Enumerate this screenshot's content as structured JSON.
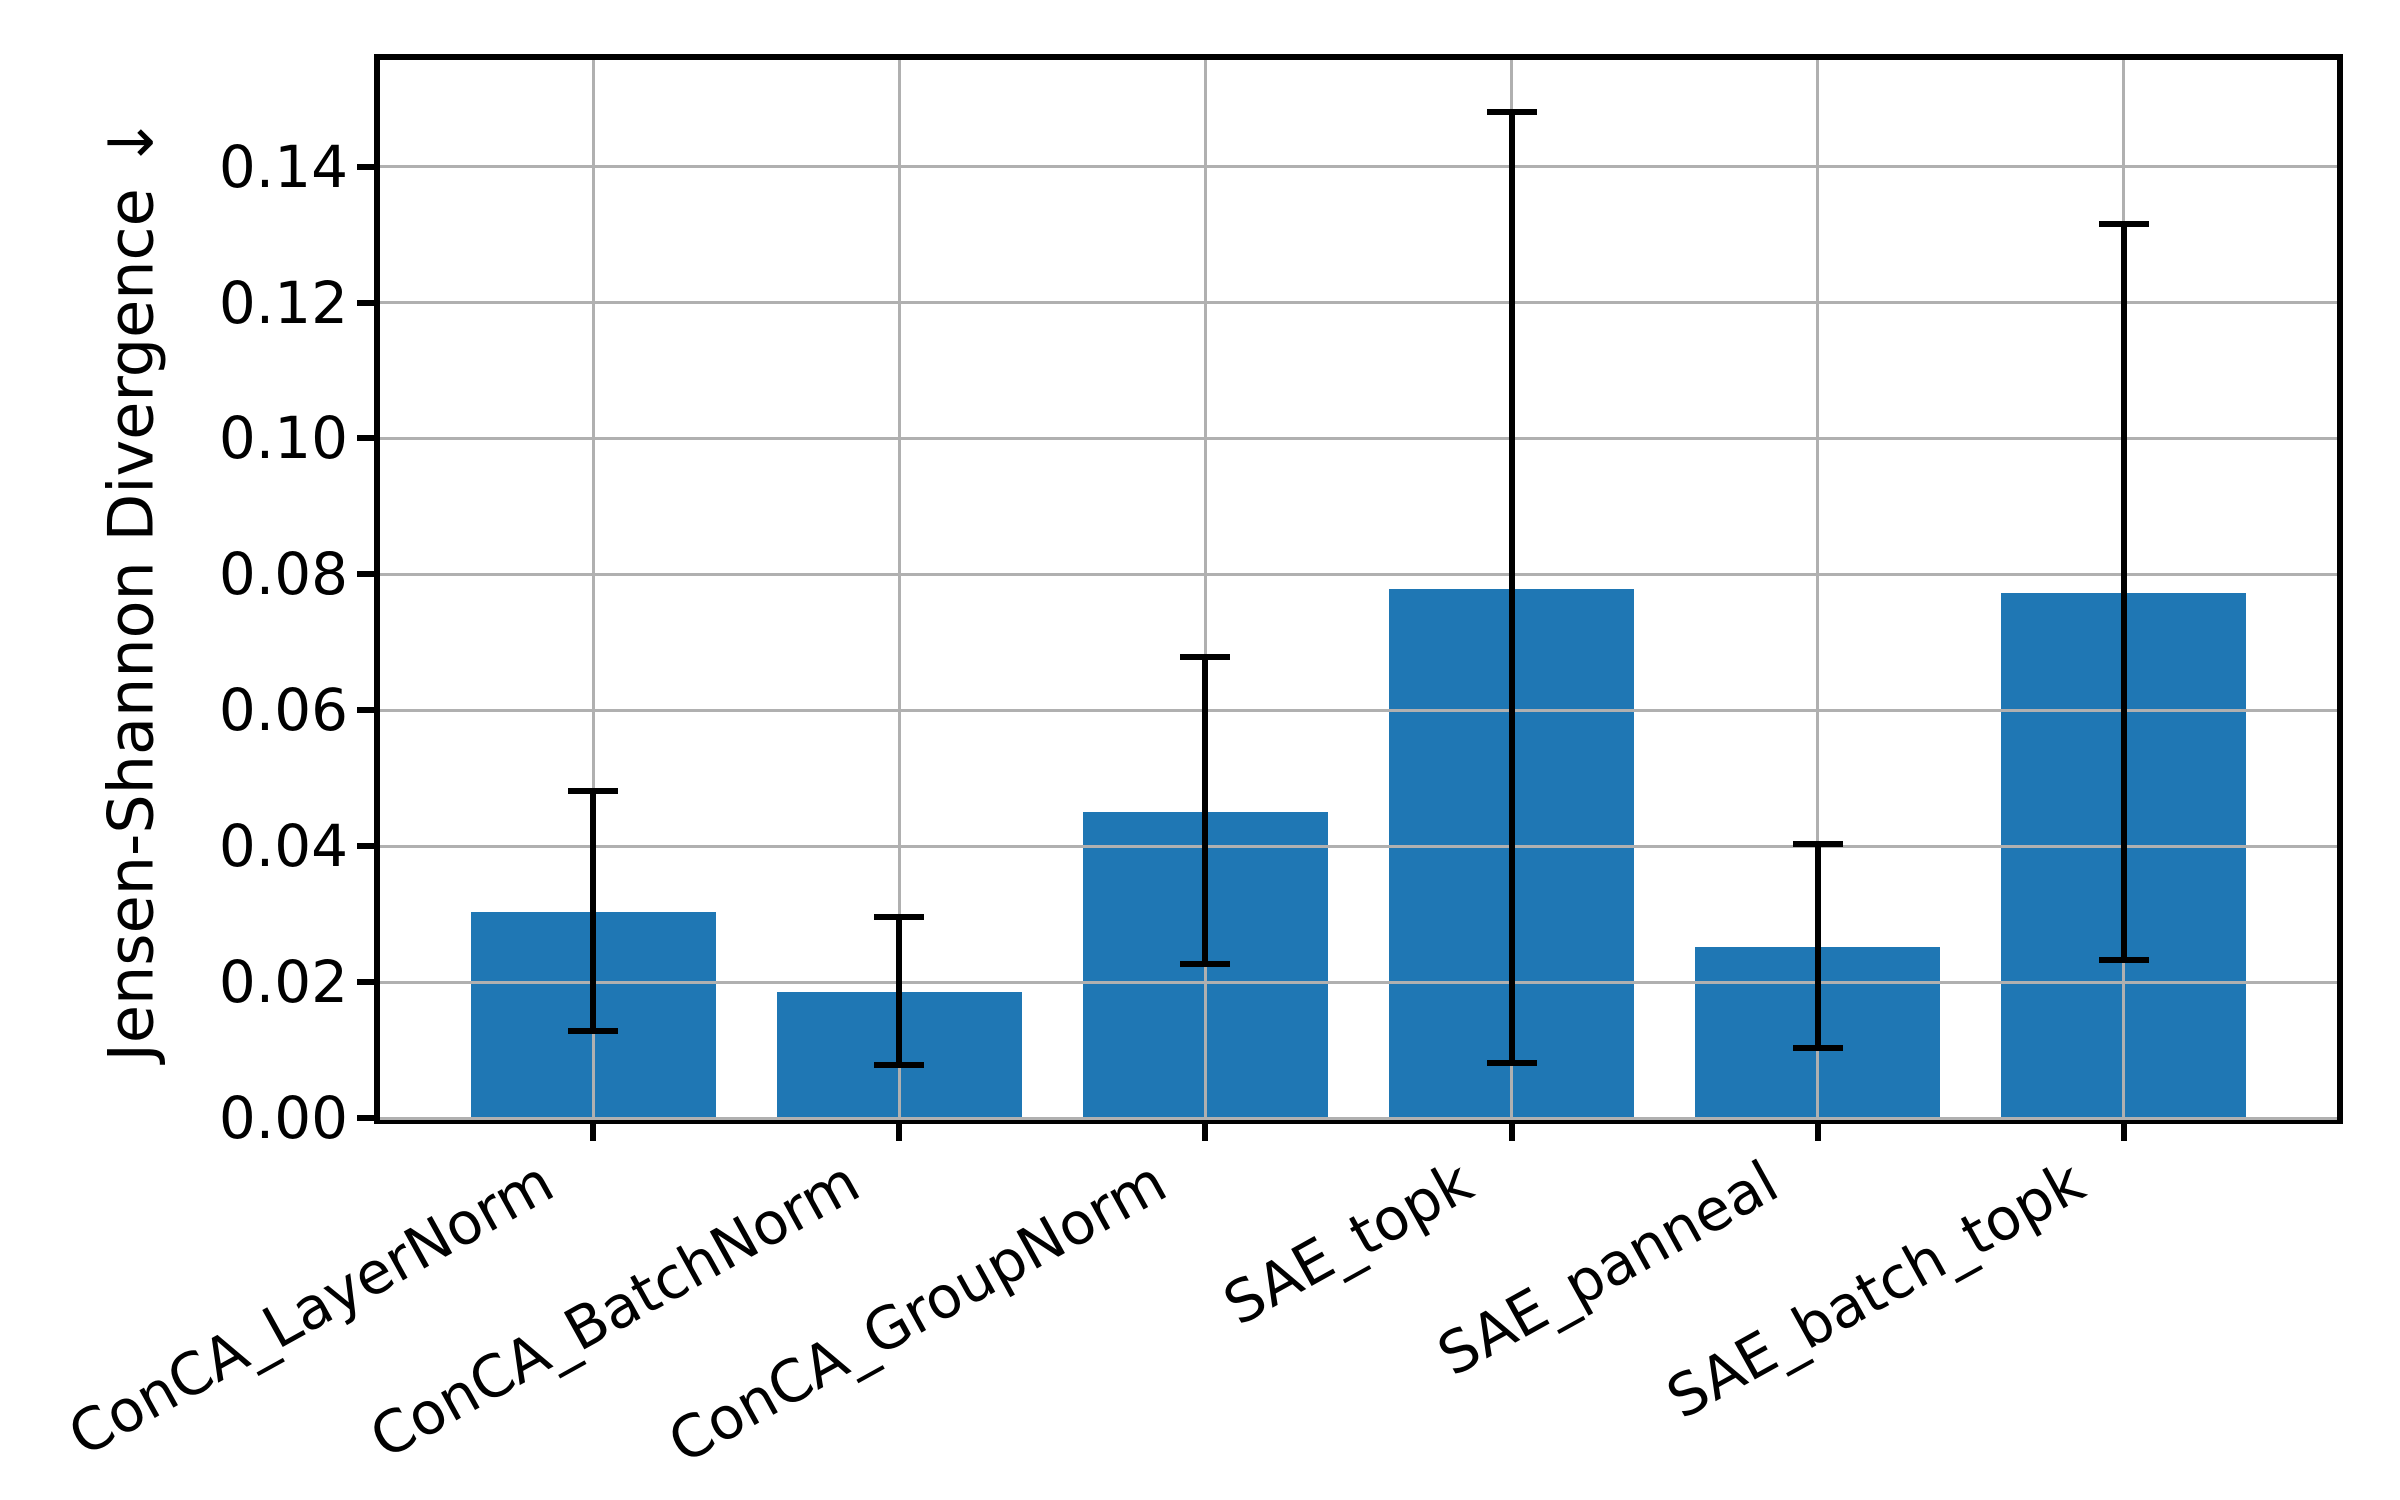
{
  "figure": {
    "background": "#ffffff"
  },
  "chart_data": {
    "type": "bar",
    "title": "",
    "xlabel": "",
    "ylabel": "Jensen-Shannon Divergence ↓",
    "categories": [
      "ConCA_LayerNorm",
      "ConCA_BatchNorm",
      "ConCA_GroupNorm",
      "SAE_topk",
      "SAE_panneal",
      "SAE_batch_topk"
    ],
    "values": [
      0.0303,
      0.0185,
      0.045,
      0.0778,
      0.0252,
      0.0773
    ],
    "error_low": [
      0.0128,
      0.0078,
      0.0226,
      0.0081,
      0.0103,
      0.0233
    ],
    "error_high": [
      0.0481,
      0.0296,
      0.0678,
      0.1481,
      0.0403,
      0.1316
    ],
    "ytick_labels": [
      "0.00",
      "0.02",
      "0.04",
      "0.06",
      "0.08",
      "0.10",
      "0.12",
      "0.14"
    ],
    "ytick_values": [
      0.0,
      0.02,
      0.04,
      0.06,
      0.08,
      0.1,
      0.12,
      0.14
    ],
    "ylim": [
      0,
      0.1557
    ],
    "xlim": [
      -0.696,
      5.696
    ],
    "bar_width_fraction": 0.8,
    "grid": "on",
    "legend": "none",
    "xtick_rotation_deg": 29,
    "bar_color": "#1f77b4",
    "grid_color": "#b0b0b0",
    "axis_color": "#000000",
    "text_color": "#000000"
  }
}
